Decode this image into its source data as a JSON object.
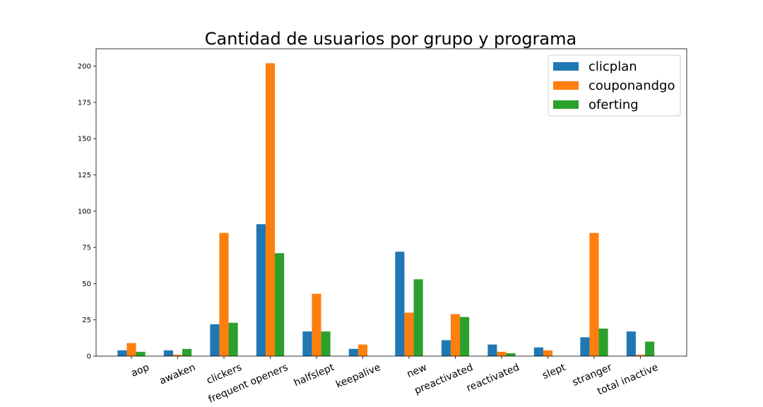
{
  "chart_data": {
    "type": "bar",
    "title": "Cantidad de usuarios por grupo y programa",
    "xlabel": "",
    "ylabel": "",
    "categories": [
      "aop",
      "awaken",
      "clickers",
      "frequent openers",
      "halfslept",
      "keepalive",
      "new",
      "preactivated",
      "reactivated",
      "slept",
      "stranger",
      "total inactive"
    ],
    "series": [
      {
        "name": "clicplan",
        "color": "#1f77b4",
        "values": [
          4,
          4,
          22,
          91,
          17,
          5,
          72,
          11,
          8,
          6,
          13,
          17
        ]
      },
      {
        "name": "couponandgo",
        "color": "#ff7f0e",
        "values": [
          9,
          1,
          85,
          202,
          43,
          8,
          30,
          29,
          3,
          4,
          85,
          1
        ]
      },
      {
        "name": "oferting",
        "color": "#2ca02c",
        "values": [
          3,
          5,
          23,
          71,
          17,
          0,
          53,
          27,
          2,
          0,
          19,
          10
        ]
      }
    ],
    "ylim": [
      0,
      212
    ],
    "yticks": [
      0,
      25,
      50,
      75,
      100,
      125,
      150,
      175,
      200
    ],
    "grid": false,
    "legend": "top-right"
  }
}
